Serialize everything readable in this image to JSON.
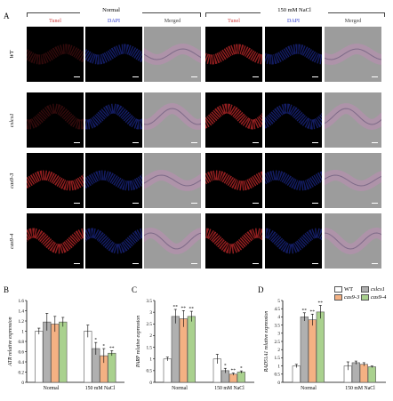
{
  "panel_a": {
    "letter": "A",
    "conditions": [
      "Normal",
      "150 mM NaCl"
    ],
    "columns": [
      "Tunel",
      "DAPI",
      "Merged",
      "Tunel",
      "DAPI",
      "Merged"
    ],
    "rows": [
      "WT",
      "cslcs1",
      "cas9-3",
      "cas9-4"
    ]
  },
  "panel_letters": {
    "b": "B",
    "c": "C",
    "d": "D"
  },
  "legend": {
    "entries": [
      {
        "label": "WT",
        "color": "#ffffff"
      },
      {
        "label": "cslcs1",
        "color": "#b0b0b0"
      },
      {
        "label": "cas9-3",
        "color": "#f4b183"
      },
      {
        "label": "cas9-4",
        "color": "#a9d18e"
      }
    ]
  },
  "chart_data": [
    {
      "type": "bar",
      "panel": "B",
      "ylabel": "ATR relative expression",
      "categories": [
        "Normal",
        "150 mM NaCl"
      ],
      "ylim": [
        0,
        1.6
      ],
      "yticks": [
        "0",
        "0.2",
        "0.4",
        "0.6",
        "0.8",
        "1",
        "1.2",
        "1.4",
        "1.6"
      ],
      "series": [
        {
          "name": "WT",
          "values": [
            1.0,
            1.0
          ],
          "errors": [
            0.06,
            0.12
          ],
          "sig": [
            "",
            ""
          ]
        },
        {
          "name": "cslcs1",
          "values": [
            1.18,
            0.66
          ],
          "errors": [
            0.17,
            0.12
          ],
          "sig": [
            "",
            "*"
          ]
        },
        {
          "name": "cas9-3",
          "values": [
            1.14,
            0.52
          ],
          "errors": [
            0.15,
            0.14
          ],
          "sig": [
            "",
            "*"
          ]
        },
        {
          "name": "cas9-4",
          "values": [
            1.18,
            0.57
          ],
          "errors": [
            0.09,
            0.05
          ],
          "sig": [
            "",
            "**"
          ]
        }
      ]
    },
    {
      "type": "bar",
      "panel": "C",
      "ylabel": "PARP relative expression",
      "categories": [
        "Normal",
        "150 mM NaCl"
      ],
      "ylim": [
        0,
        3.5
      ],
      "yticks": [
        "0",
        "0.5",
        "1",
        "1.5",
        "2",
        "2.5",
        "3",
        "3.5"
      ],
      "series": [
        {
          "name": "WT",
          "values": [
            1.0,
            1.0
          ],
          "errors": [
            0.08,
            0.2
          ],
          "sig": [
            "",
            ""
          ]
        },
        {
          "name": "cslcs1",
          "values": [
            2.82,
            0.5
          ],
          "errors": [
            0.3,
            0.1
          ],
          "sig": [
            "**",
            "*"
          ]
        },
        {
          "name": "cas9-3",
          "values": [
            2.72,
            0.35
          ],
          "errors": [
            0.35,
            0.05
          ],
          "sig": [
            "**",
            "**"
          ]
        },
        {
          "name": "cas9-4",
          "values": [
            2.82,
            0.44
          ],
          "errors": [
            0.22,
            0.05
          ],
          "sig": [
            "**",
            "*"
          ]
        }
      ]
    },
    {
      "type": "bar",
      "panel": "D",
      "ylabel": "RAD51A1 relative expression",
      "categories": [
        "Normal",
        "150 mM NaCl"
      ],
      "ylim": [
        0,
        5
      ],
      "yticks": [
        "0",
        "0.5",
        "1",
        "1.5",
        "2",
        "2.5",
        "3",
        "3.5",
        "4",
        "4.5",
        "5"
      ],
      "series": [
        {
          "name": "WT",
          "values": [
            1.0,
            1.0
          ],
          "errors": [
            0.1,
            0.25
          ],
          "sig": [
            "",
            ""
          ]
        },
        {
          "name": "cslcs1",
          "values": [
            4.0,
            1.2
          ],
          "errors": [
            0.25,
            0.1
          ],
          "sig": [
            "**",
            ""
          ]
        },
        {
          "name": "cas9-3",
          "values": [
            3.82,
            1.1
          ],
          "errors": [
            0.35,
            0.1
          ],
          "sig": [
            "**",
            ""
          ]
        },
        {
          "name": "cas9-4",
          "values": [
            4.3,
            0.95
          ],
          "errors": [
            0.4,
            0.05
          ],
          "sig": [
            "**",
            ""
          ]
        }
      ]
    }
  ]
}
